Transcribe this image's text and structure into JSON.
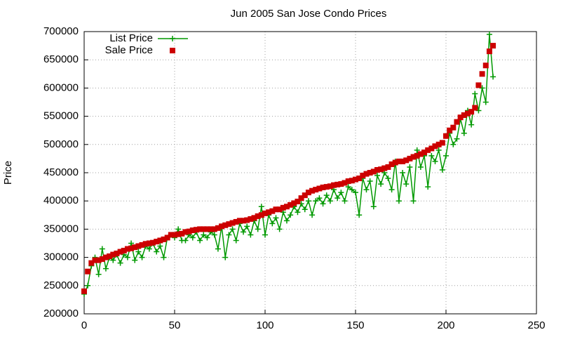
{
  "chart_data": {
    "type": "line",
    "title": "Jun 2005 San Jose Condo Prices",
    "y_label": "Price",
    "x": [
      0,
      2,
      4,
      6,
      8,
      10,
      12,
      14,
      16,
      18,
      20,
      22,
      24,
      26,
      28,
      30,
      32,
      34,
      36,
      38,
      40,
      42,
      44,
      46,
      48,
      50,
      52,
      54,
      56,
      58,
      60,
      62,
      64,
      66,
      68,
      70,
      72,
      74,
      76,
      78,
      80,
      82,
      84,
      86,
      88,
      90,
      92,
      94,
      96,
      98,
      100,
      102,
      104,
      106,
      108,
      110,
      112,
      114,
      116,
      118,
      120,
      122,
      124,
      126,
      128,
      130,
      132,
      134,
      136,
      138,
      140,
      142,
      144,
      146,
      148,
      150,
      152,
      154,
      156,
      158,
      160,
      162,
      164,
      166,
      168,
      170,
      172,
      174,
      176,
      178,
      180,
      182,
      184,
      186,
      188,
      190,
      192,
      194,
      196,
      198,
      200,
      202,
      204,
      206,
      208,
      210,
      212,
      214,
      216,
      218,
      220,
      222,
      224,
      226
    ],
    "series": [
      {
        "name": "List Price",
        "color": "#009900",
        "line": true,
        "marker": "plus",
        "values": [
          235000,
          250000,
          285000,
          300000,
          270000,
          315000,
          280000,
          300000,
          295000,
          305000,
          290000,
          305000,
          300000,
          325000,
          295000,
          310000,
          300000,
          320000,
          315000,
          325000,
          310000,
          320000,
          300000,
          335000,
          340000,
          335000,
          350000,
          330000,
          330000,
          340000,
          335000,
          345000,
          330000,
          340000,
          335000,
          345000,
          340000,
          315000,
          355000,
          300000,
          340000,
          350000,
          330000,
          360000,
          345000,
          355000,
          340000,
          365000,
          350000,
          390000,
          340000,
          375000,
          360000,
          370000,
          350000,
          380000,
          365000,
          375000,
          390000,
          380000,
          395000,
          385000,
          400000,
          375000,
          400000,
          405000,
          395000,
          410000,
          400000,
          420000,
          405000,
          415000,
          400000,
          425000,
          420000,
          415000,
          375000,
          440000,
          420000,
          435000,
          390000,
          445000,
          430000,
          450000,
          440000,
          420000,
          470000,
          400000,
          450000,
          430000,
          460000,
          400000,
          490000,
          460000,
          480000,
          425000,
          480000,
          470000,
          490000,
          455000,
          480000,
          520000,
          500000,
          510000,
          545000,
          520000,
          560000,
          535000,
          590000,
          560000,
          600000,
          575000,
          695000,
          620000
        ]
      },
      {
        "name": "Sale Price",
        "color": "#cc0000",
        "line": false,
        "marker": "square",
        "values": [
          240000,
          275000,
          290000,
          295000,
          295000,
          297000,
          300000,
          302000,
          305000,
          307000,
          310000,
          312000,
          315000,
          316000,
          318000,
          320000,
          322000,
          324000,
          325000,
          326000,
          328000,
          330000,
          332000,
          335000,
          340000,
          340000,
          341000,
          342000,
          345000,
          346000,
          348000,
          349000,
          350000,
          350000,
          350000,
          350000,
          350000,
          352000,
          355000,
          357000,
          359000,
          361000,
          363000,
          365000,
          365000,
          366000,
          368000,
          370000,
          373000,
          375000,
          378000,
          380000,
          382000,
          385000,
          385000,
          388000,
          390000,
          393000,
          396000,
          399000,
          405000,
          410000,
          415000,
          418000,
          420000,
          422000,
          424000,
          425000,
          426000,
          428000,
          429000,
          430000,
          432000,
          435000,
          436000,
          438000,
          440000,
          445000,
          448000,
          450000,
          452000,
          455000,
          456000,
          458000,
          460000,
          465000,
          468000,
          470000,
          470000,
          472000,
          475000,
          478000,
          480000,
          483000,
          486000,
          490000,
          493000,
          497000,
          500000,
          503000,
          515000,
          525000,
          530000,
          540000,
          548000,
          552000,
          555000,
          558000,
          565000,
          605000,
          625000,
          640000,
          665000,
          675000
        ]
      }
    ],
    "xlim": [
      0,
      250
    ],
    "xticks": [
      0,
      50,
      100,
      150,
      200,
      250
    ],
    "ylim": [
      200000,
      700000
    ],
    "yticks": [
      200000,
      250000,
      300000,
      350000,
      400000,
      450000,
      500000,
      550000,
      600000,
      650000,
      700000
    ],
    "grid": true,
    "legend": "top-left"
  }
}
